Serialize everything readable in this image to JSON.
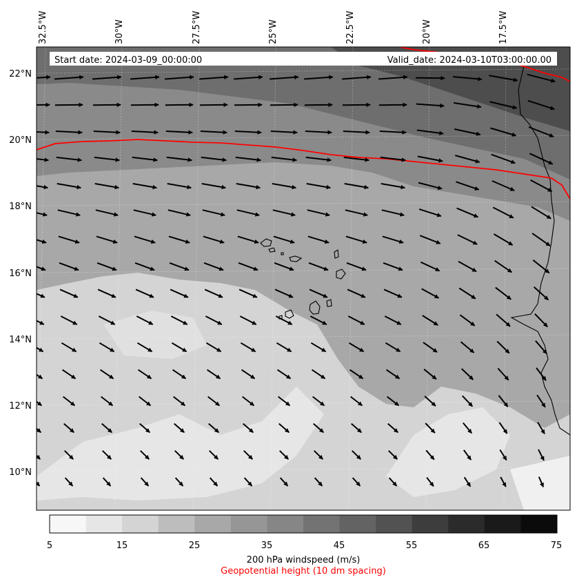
{
  "map": {
    "start_label": "Start date: 2024-03-09_00:00:00",
    "valid_label": "Valid_date: 2024-03-10T03:00:00.00",
    "lon_labels": [
      "32.5°W",
      "30°W",
      "27.5°W",
      "25°W",
      "22.5°W",
      "20°W",
      "17.5°W"
    ],
    "lat_labels": [
      "22°N",
      "20°N",
      "18°N",
      "16°N",
      "14°N",
      "12°N",
      "10°N"
    ],
    "colorbar": {
      "ticks": [
        "5",
        "15",
        "25",
        "35",
        "45",
        "55",
        "65",
        "75"
      ],
      "colors": [
        "#f7f7f7",
        "#e6e6e6",
        "#d4d4d4",
        "#bdbdbd",
        "#a8a8a8",
        "#969696",
        "#868686",
        "#737373",
        "#636363",
        "#525252",
        "#3d3d3d",
        "#2b2b2b",
        "#1a1a1a",
        "#0b0b0b"
      ],
      "label": "200 hPa windspeed (m/s)",
      "sublabel": "Geopotential height (10 dm spacing)"
    },
    "contour_color": "#ff0000"
  }
}
